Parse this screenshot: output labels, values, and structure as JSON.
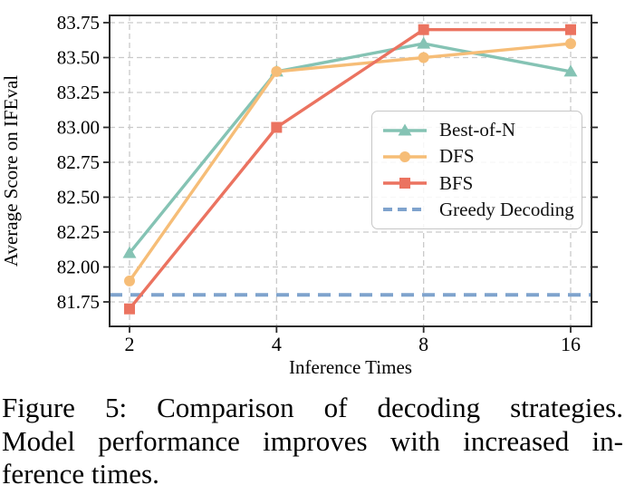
{
  "figure": {
    "caption_lines": [
      "Figure 5: Comparison of decoding strategies.",
      "Model performance improves with increased in-",
      "ference times."
    ]
  },
  "chart_data": {
    "type": "line",
    "title": "",
    "xlabel": "Inference Times",
    "ylabel": "Average Score on IFEval",
    "x_scale": "log2",
    "x": [
      2,
      4,
      8,
      16
    ],
    "x_tick_labels": [
      "2",
      "4",
      "8",
      "16"
    ],
    "y_tick_values": [
      81.75,
      82.0,
      82.25,
      82.5,
      82.75,
      83.0,
      83.25,
      83.5,
      83.75
    ],
    "y_tick_labels": [
      "81.75",
      "82.00",
      "82.25",
      "82.50",
      "82.75",
      "83.00",
      "83.25",
      "83.50",
      "83.75"
    ],
    "ylim": [
      81.57,
      83.8
    ],
    "grid": true,
    "legend_position": "center-right",
    "series": [
      {
        "name": "Best-of-N",
        "color": "#85C3B4",
        "marker": "triangle",
        "values": [
          82.1,
          83.4,
          83.6,
          83.4
        ]
      },
      {
        "name": "DFS",
        "color": "#F6BD77",
        "marker": "circle",
        "values": [
          81.9,
          83.4,
          83.5,
          83.6
        ]
      },
      {
        "name": "BFS",
        "color": "#EB7360",
        "marker": "square",
        "values": [
          81.7,
          83.0,
          83.7,
          83.7
        ]
      }
    ],
    "baseline": {
      "name": "Greedy Decoding",
      "color": "#7FA3CD",
      "line_style": "dashed",
      "value": 81.8
    },
    "grid_color": "#C9C9C9",
    "spine_color": "#2B2B2B"
  }
}
